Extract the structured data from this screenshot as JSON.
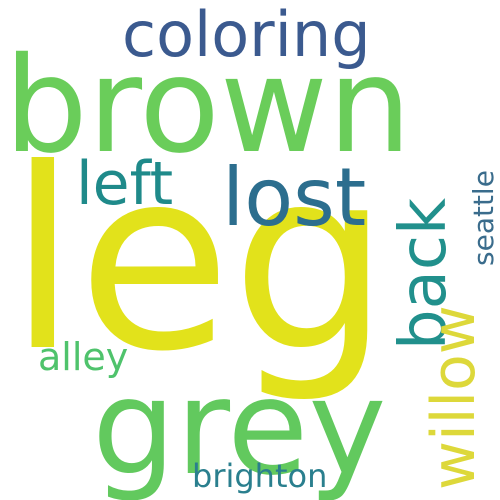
{
  "words": [
    {
      "id": "coloring",
      "text": "coloring",
      "color": "#3b5a8f"
    },
    {
      "id": "brown",
      "text": "brown",
      "color": "#6acd5a"
    },
    {
      "id": "leg",
      "text": "leg",
      "color": "#e2e21b"
    },
    {
      "id": "left",
      "text": "left",
      "color": "#1f8a8a"
    },
    {
      "id": "lost",
      "text": "lost",
      "color": "#2c6e8e"
    },
    {
      "id": "grey",
      "text": "grey",
      "color": "#62c95e"
    },
    {
      "id": "alley",
      "text": "alley",
      "color": "#4fc36c"
    },
    {
      "id": "brighton",
      "text": "brighton",
      "color": "#2a7f8e"
    },
    {
      "id": "back",
      "text": "back",
      "color": "#21908c"
    },
    {
      "id": "willow",
      "text": "willow",
      "color": "#ddd83a"
    },
    {
      "id": "seattle",
      "text": "seattle",
      "color": "#3a6c8c"
    }
  ]
}
